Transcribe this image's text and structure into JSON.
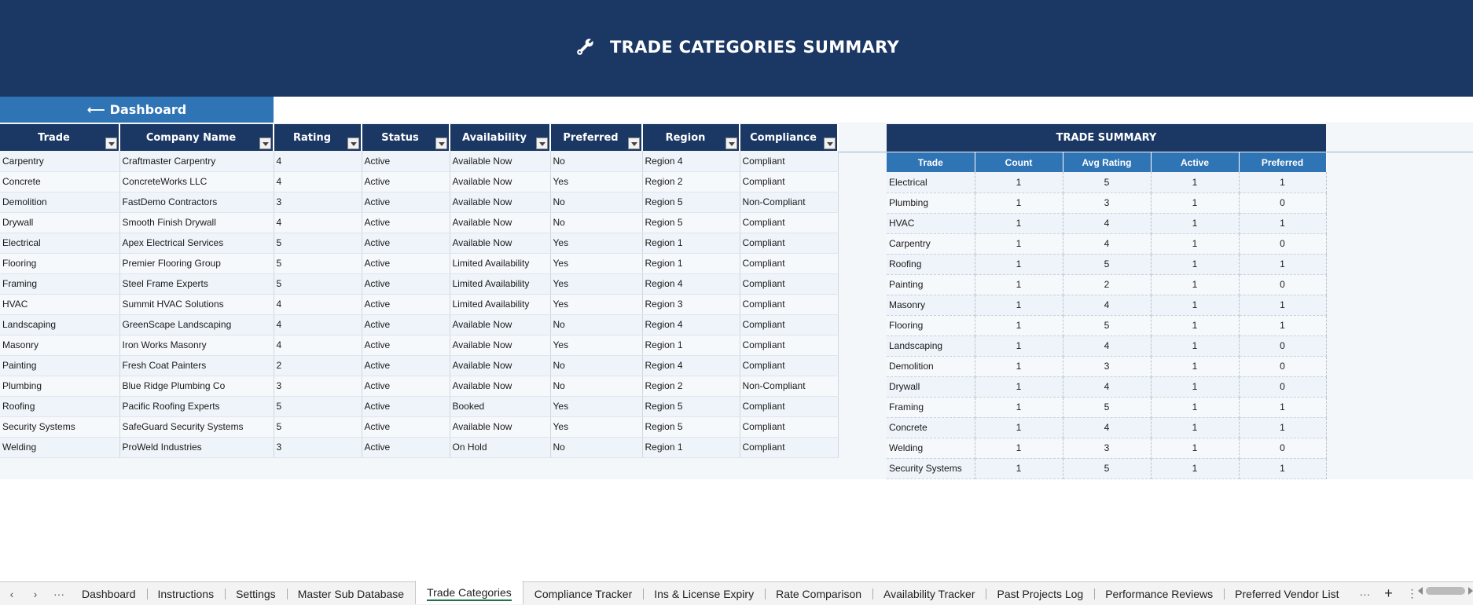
{
  "banner": {
    "title": "TRADE CATEGORIES SUMMARY",
    "icon": "wrench-icon"
  },
  "dashboard_button": {
    "arrow": "⟵",
    "label": "Dashboard"
  },
  "main_table": {
    "headers": [
      "Trade",
      "Company Name",
      "Rating",
      "Status",
      "Availability",
      "Preferred",
      "Region",
      "Compliance"
    ],
    "rows": [
      [
        "Carpentry",
        "Craftmaster Carpentry",
        "4",
        "Active",
        "Available Now",
        "No",
        "Region 4",
        "Compliant"
      ],
      [
        "Concrete",
        "ConcreteWorks LLC",
        "4",
        "Active",
        "Available Now",
        "Yes",
        "Region 2",
        "Compliant"
      ],
      [
        "Demolition",
        "FastDemo Contractors",
        "3",
        "Active",
        "Available Now",
        "No",
        "Region 5",
        "Non-Compliant"
      ],
      [
        "Drywall",
        "Smooth Finish Drywall",
        "4",
        "Active",
        "Available Now",
        "No",
        "Region 5",
        "Compliant"
      ],
      [
        "Electrical",
        "Apex Electrical Services",
        "5",
        "Active",
        "Available Now",
        "Yes",
        "Region 1",
        "Compliant"
      ],
      [
        "Flooring",
        "Premier Flooring Group",
        "5",
        "Active",
        "Limited Availability",
        "Yes",
        "Region 1",
        "Compliant"
      ],
      [
        "Framing",
        "Steel Frame Experts",
        "5",
        "Active",
        "Limited Availability",
        "Yes",
        "Region 4",
        "Compliant"
      ],
      [
        "HVAC",
        "Summit HVAC Solutions",
        "4",
        "Active",
        "Limited Availability",
        "Yes",
        "Region 3",
        "Compliant"
      ],
      [
        "Landscaping",
        "GreenScape Landscaping",
        "4",
        "Active",
        "Available Now",
        "No",
        "Region 4",
        "Compliant"
      ],
      [
        "Masonry",
        "Iron Works Masonry",
        "4",
        "Active",
        "Available Now",
        "Yes",
        "Region 1",
        "Compliant"
      ],
      [
        "Painting",
        "Fresh Coat Painters",
        "2",
        "Active",
        "Available Now",
        "No",
        "Region 4",
        "Compliant"
      ],
      [
        "Plumbing",
        "Blue Ridge Plumbing Co",
        "3",
        "Active",
        "Available Now",
        "No",
        "Region 2",
        "Non-Compliant"
      ],
      [
        "Roofing",
        "Pacific Roofing Experts",
        "5",
        "Active",
        "Booked",
        "Yes",
        "Region 5",
        "Compliant"
      ],
      [
        "Security Systems",
        "SafeGuard Security Systems",
        "5",
        "Active",
        "Available Now",
        "Yes",
        "Region 5",
        "Compliant"
      ],
      [
        "Welding",
        "ProWeld Industries",
        "3",
        "Active",
        "On Hold",
        "No",
        "Region 1",
        "Compliant"
      ]
    ]
  },
  "summary": {
    "title": "TRADE SUMMARY",
    "headers": [
      "Trade",
      "Count",
      "Avg Rating",
      "Active",
      "Preferred"
    ],
    "rows": [
      [
        "Electrical",
        "1",
        "5",
        "1",
        "1"
      ],
      [
        "Plumbing",
        "1",
        "3",
        "1",
        "0"
      ],
      [
        "HVAC",
        "1",
        "4",
        "1",
        "1"
      ],
      [
        "Carpentry",
        "1",
        "4",
        "1",
        "0"
      ],
      [
        "Roofing",
        "1",
        "5",
        "1",
        "1"
      ],
      [
        "Painting",
        "1",
        "2",
        "1",
        "0"
      ],
      [
        "Masonry",
        "1",
        "4",
        "1",
        "1"
      ],
      [
        "Flooring",
        "1",
        "5",
        "1",
        "1"
      ],
      [
        "Landscaping",
        "1",
        "4",
        "1",
        "0"
      ],
      [
        "Demolition",
        "1",
        "3",
        "1",
        "0"
      ],
      [
        "Drywall",
        "1",
        "4",
        "1",
        "0"
      ],
      [
        "Framing",
        "1",
        "5",
        "1",
        "1"
      ],
      [
        "Concrete",
        "1",
        "4",
        "1",
        "1"
      ],
      [
        "Welding",
        "1",
        "3",
        "1",
        "0"
      ],
      [
        "Security Systems",
        "1",
        "5",
        "1",
        "1"
      ]
    ]
  },
  "tabs": {
    "nav_prev": "‹",
    "nav_next": "›",
    "more_left": "···",
    "items": [
      "Dashboard",
      "Instructions",
      "Settings",
      "Master Sub Database",
      "Trade Categories",
      "Compliance Tracker",
      "Ins & License Expiry",
      "Rate Comparison",
      "Availability Tracker",
      "Past Projects Log",
      "Performance Reviews",
      "Preferred Vendor List"
    ],
    "active": "Trade Categories",
    "more_right": "···",
    "add": "+",
    "options": "⋮"
  }
}
